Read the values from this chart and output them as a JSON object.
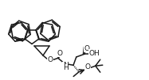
{
  "bg_color": "#ffffff",
  "line_color": "#1a1a1a",
  "lw": 1.1,
  "figsize": [
    1.87,
    1.01
  ],
  "dpi": 100,
  "xlim": [
    0,
    187
  ],
  "ylim": [
    0,
    101
  ]
}
